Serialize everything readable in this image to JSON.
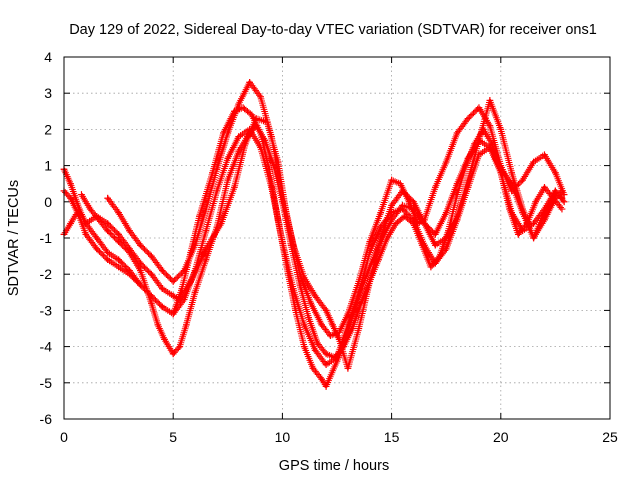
{
  "chart_data": {
    "type": "scatter",
    "title": "Day 129 of 2022, Sidereal Day-to-day VTEC variation (SDTVAR) for receiver ons1",
    "xlabel": "GPS time / hours",
    "ylabel": "SDTVAR / TECUs",
    "xlim": [
      0,
      25
    ],
    "ylim": [
      -6,
      4
    ],
    "xticks": [
      "0",
      "5",
      "10",
      "15",
      "20",
      "25"
    ],
    "yticks": [
      "-6",
      "-5",
      "-4",
      "-3",
      "-2",
      "-1",
      "0",
      "1",
      "2",
      "3",
      "4"
    ],
    "grid": true,
    "legend": "none",
    "marker": "+",
    "series_color": "#ff0000",
    "series": [
      {
        "x": [
          0,
          0.3,
          0.7,
          1.0,
          1.5,
          2.0,
          2.5,
          3.0,
          3.5,
          4.0,
          4.5,
          5.0,
          5.3,
          5.8,
          6.5,
          7.2,
          7.8,
          8.3,
          8.8,
          9.3,
          9.8,
          10.2,
          10.8,
          11.3,
          11.8,
          12.2,
          12.6,
          13.0,
          13.5,
          14.0,
          14.5,
          15.0,
          15.4,
          15.8,
          16.2,
          16.5,
          17.0,
          17.5,
          18.0,
          18.5,
          19.0,
          19.5,
          20.0,
          20.5,
          21.0,
          21.5,
          22.0,
          22.5,
          22.9
        ],
        "y": [
          0.9,
          0.5,
          -0.2,
          -0.6,
          -0.4,
          -0.6,
          -0.9,
          -1.3,
          -1.7,
          -2.0,
          -2.4,
          -2.6,
          -2.7,
          -2.2,
          -1.3,
          -0.6,
          0.4,
          1.6,
          2.3,
          2.2,
          1.1,
          -0.4,
          -2.0,
          -2.8,
          -3.4,
          -3.7,
          -3.6,
          -3.1,
          -2.2,
          -1.1,
          -0.3,
          0.6,
          0.5,
          0.0,
          -0.6,
          -0.5,
          0.4,
          1.1,
          1.9,
          2.3,
          2.6,
          2.1,
          1.0,
          0.3,
          0.6,
          1.1,
          1.3,
          0.8,
          0.2
        ]
      },
      {
        "x": [
          0,
          0.3,
          0.7,
          1.0,
          1.5,
          2.0,
          2.5,
          3.0,
          3.5,
          4.0,
          4.5,
          5.0,
          5.5,
          6.0,
          6.5,
          7.0,
          7.5,
          8.0,
          8.5,
          9.0,
          9.5,
          10.0,
          10.5,
          11.0,
          11.5,
          12.0,
          12.5,
          13.0,
          13.5,
          14.0,
          14.5,
          15.0,
          15.5,
          16.0,
          16.5,
          17.0,
          17.5,
          18.0,
          18.5,
          19.0,
          19.5,
          20.0,
          20.5,
          21.0,
          21.5,
          22.0,
          22.5,
          22.8
        ],
        "y": [
          -0.9,
          -0.6,
          -0.2,
          -0.6,
          -1.0,
          -1.4,
          -1.6,
          -1.9,
          -2.3,
          -2.6,
          -2.9,
          -3.1,
          -2.7,
          -1.9,
          -0.8,
          0.3,
          1.2,
          1.8,
          2.0,
          1.5,
          0.4,
          -1.1,
          -2.4,
          -3.4,
          -4.1,
          -4.5,
          -4.3,
          -3.4,
          -2.5,
          -1.4,
          -0.7,
          -0.3,
          -0.2,
          -0.5,
          -1.2,
          -1.7,
          -1.3,
          -0.5,
          0.4,
          1.3,
          1.5,
          0.8,
          -0.3,
          -0.8,
          -0.6,
          -0.2,
          0.3,
          0.1
        ]
      },
      {
        "x": [
          0,
          0.3,
          0.7,
          1.0,
          1.5,
          2.0,
          2.5,
          3.0,
          3.5,
          4.0,
          4.5,
          5.0,
          5.4,
          5.8,
          6.2,
          6.8,
          7.3,
          7.8,
          8.2,
          8.6,
          9.0,
          9.4,
          9.8,
          10.2,
          10.6,
          11.0,
          11.4,
          11.8,
          12.0,
          12.5,
          13.0,
          13.5,
          14.0,
          14.5,
          15.0,
          15.5,
          16.0,
          16.5,
          17.0,
          17.5,
          18.0,
          18.5,
          19.0,
          19.5,
          20.0,
          20.5,
          21.0,
          21.5,
          22.0,
          22.5,
          22.9
        ],
        "y": [
          0.3,
          0.1,
          -0.4,
          -0.9,
          -1.3,
          -1.6,
          -1.8,
          -2.0,
          -2.3,
          -2.6,
          -2.9,
          -3.1,
          -2.4,
          -1.4,
          -0.4,
          0.8,
          1.9,
          2.5,
          2.6,
          2.4,
          1.9,
          0.9,
          -0.5,
          -1.8,
          -3.0,
          -4.0,
          -4.6,
          -4.9,
          -5.1,
          -4.4,
          -3.6,
          -2.6,
          -1.8,
          -1.1,
          -0.5,
          -0.1,
          -0.2,
          -0.6,
          -0.9,
          -0.3,
          0.5,
          1.2,
          1.7,
          1.5,
          0.9,
          0.5,
          -0.3,
          -1.0,
          -0.3,
          0.3,
          0.0
        ]
      },
      {
        "x": [
          2.0,
          2.5,
          3.0,
          3.5,
          4.0,
          4.5,
          5.0,
          5.5,
          6.0,
          6.5,
          7.0,
          7.5,
          8.0,
          8.5,
          9.0,
          9.5,
          10.0,
          10.5,
          11.0,
          11.5,
          12.0,
          12.3,
          12.6,
          13.0,
          13.5,
          14.0,
          14.5,
          15.0,
          15.5,
          16.0,
          16.5,
          17.0,
          17.5,
          18.0,
          18.5,
          19.0,
          19.5,
          20.0,
          20.5,
          21.0,
          21.5,
          22.0,
          22.5,
          22.8
        ],
        "y": [
          0.1,
          -0.3,
          -0.8,
          -1.2,
          -1.5,
          -1.9,
          -2.2,
          -1.9,
          -1.2,
          -0.2,
          0.9,
          1.9,
          2.7,
          3.3,
          2.9,
          1.8,
          0.2,
          -1.2,
          -2.1,
          -2.6,
          -3.0,
          -3.4,
          -3.8,
          -4.6,
          -3.5,
          -2.2,
          -1.0,
          -0.1,
          0.3,
          0.0,
          -0.6,
          -1.2,
          -1.0,
          -0.4,
          0.6,
          1.7,
          2.8,
          2.0,
          0.8,
          -0.2,
          -1.0,
          -0.5,
          0.1,
          0.3
        ]
      },
      {
        "x": [
          0.8,
          1.2,
          1.6,
          2.0,
          2.5,
          3.0,
          3.5,
          4.0,
          4.3,
          4.6,
          5.0,
          5.3,
          5.6,
          6.0,
          6.5,
          7.0,
          7.5,
          8.0,
          8.4,
          8.8,
          9.2,
          9.6,
          10.0,
          10.4,
          10.8,
          11.2,
          11.6,
          12.0,
          12.4,
          12.8,
          13.2,
          13.6,
          14.0,
          14.4,
          14.8,
          15.2,
          15.6,
          16.0,
          16.4,
          16.8,
          17.2,
          17.6,
          18.0,
          18.4,
          18.8,
          19.2,
          19.6,
          20.0,
          20.4,
          20.8,
          21.2,
          21.6,
          22.0,
          22.4,
          22.8
        ],
        "y": [
          0.2,
          -0.2,
          -0.5,
          -0.8,
          -1.1,
          -1.4,
          -1.9,
          -2.8,
          -3.4,
          -3.8,
          -4.2,
          -4.0,
          -3.4,
          -2.5,
          -1.6,
          -0.7,
          0.6,
          1.4,
          1.8,
          2.1,
          1.7,
          1.0,
          0.0,
          -1.2,
          -2.3,
          -3.2,
          -3.9,
          -4.2,
          -4.3,
          -4.0,
          -3.5,
          -2.8,
          -2.2,
          -1.6,
          -1.0,
          -0.6,
          -0.4,
          -0.6,
          -1.2,
          -1.8,
          -1.5,
          -0.8,
          0.2,
          1.0,
          1.6,
          2.0,
          1.6,
          0.8,
          -0.2,
          -0.9,
          -0.6,
          0.0,
          0.4,
          0.1,
          -0.2
        ]
      }
    ]
  }
}
